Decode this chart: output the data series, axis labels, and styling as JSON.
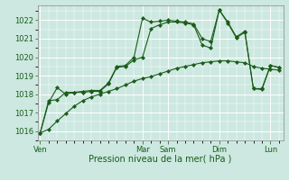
{
  "title": "",
  "xlabel": "Pression niveau de la mer( hPa )",
  "ylabel": "",
  "bg_color": "#cce8e0",
  "grid_color": "#ffffff",
  "line_color": "#1a5c1a",
  "vline_color": "#2d6e2d",
  "ylim": [
    1015.5,
    1022.8
  ],
  "yticks": [
    1016,
    1017,
    1018,
    1019,
    1020,
    1021,
    1022
  ],
  "day_labels": [
    "Ven",
    "",
    "Mar",
    "Sam",
    "",
    "Dim",
    "",
    "Lun"
  ],
  "day_positions": [
    0,
    6,
    12,
    15,
    18,
    21,
    24,
    27
  ],
  "vline_positions": [
    0,
    12,
    15,
    21,
    27
  ],
  "xlim": [
    -0.3,
    28.5
  ],
  "series1": [
    [
      0,
      1015.9
    ],
    [
      1,
      1016.1
    ],
    [
      2,
      1016.55
    ],
    [
      3,
      1016.95
    ],
    [
      4,
      1017.35
    ],
    [
      5,
      1017.65
    ],
    [
      6,
      1017.85
    ],
    [
      7,
      1018.0
    ],
    [
      8,
      1018.15
    ],
    [
      9,
      1018.3
    ],
    [
      10,
      1018.5
    ],
    [
      11,
      1018.7
    ],
    [
      12,
      1018.85
    ],
    [
      13,
      1018.95
    ],
    [
      14,
      1019.1
    ],
    [
      15,
      1019.25
    ],
    [
      16,
      1019.4
    ],
    [
      17,
      1019.5
    ],
    [
      18,
      1019.6
    ],
    [
      19,
      1019.7
    ],
    [
      20,
      1019.75
    ],
    [
      21,
      1019.8
    ],
    [
      22,
      1019.8
    ],
    [
      23,
      1019.75
    ],
    [
      24,
      1019.7
    ],
    [
      25,
      1019.5
    ],
    [
      26,
      1019.4
    ],
    [
      27,
      1019.35
    ],
    [
      28,
      1019.3
    ]
  ],
  "series2": [
    [
      0,
      1015.9
    ],
    [
      1,
      1017.65
    ],
    [
      2,
      1017.7
    ],
    [
      3,
      1018.1
    ],
    [
      4,
      1018.1
    ],
    [
      5,
      1018.15
    ],
    [
      6,
      1018.2
    ],
    [
      7,
      1018.2
    ],
    [
      8,
      1018.6
    ],
    [
      9,
      1019.5
    ],
    [
      10,
      1019.55
    ],
    [
      11,
      1020.0
    ],
    [
      12,
      1022.1
    ],
    [
      13,
      1021.9
    ],
    [
      14,
      1021.95
    ],
    [
      15,
      1022.0
    ],
    [
      16,
      1021.95
    ],
    [
      17,
      1021.9
    ],
    [
      18,
      1021.8
    ],
    [
      19,
      1021.0
    ],
    [
      20,
      1020.85
    ],
    [
      21,
      1022.55
    ],
    [
      22,
      1021.9
    ],
    [
      23,
      1021.1
    ],
    [
      24,
      1021.4
    ],
    [
      25,
      1018.3
    ],
    [
      26,
      1018.3
    ],
    [
      27,
      1019.55
    ],
    [
      28,
      1019.45
    ]
  ],
  "series3": [
    [
      0,
      1015.9
    ],
    [
      1,
      1017.55
    ],
    [
      2,
      1018.35
    ],
    [
      3,
      1018.0
    ],
    [
      4,
      1018.1
    ],
    [
      5,
      1018.1
    ],
    [
      6,
      1018.15
    ],
    [
      7,
      1018.15
    ],
    [
      8,
      1018.55
    ],
    [
      9,
      1019.45
    ],
    [
      10,
      1019.5
    ],
    [
      11,
      1019.85
    ],
    [
      12,
      1020.0
    ],
    [
      13,
      1021.55
    ],
    [
      14,
      1021.75
    ],
    [
      15,
      1021.9
    ],
    [
      16,
      1021.9
    ],
    [
      17,
      1021.85
    ],
    [
      18,
      1021.75
    ],
    [
      19,
      1020.65
    ],
    [
      20,
      1020.5
    ],
    [
      21,
      1022.55
    ],
    [
      22,
      1021.85
    ],
    [
      23,
      1021.05
    ],
    [
      24,
      1021.35
    ],
    [
      25,
      1018.3
    ],
    [
      26,
      1018.25
    ],
    [
      27,
      1019.55
    ],
    [
      28,
      1019.45
    ]
  ]
}
